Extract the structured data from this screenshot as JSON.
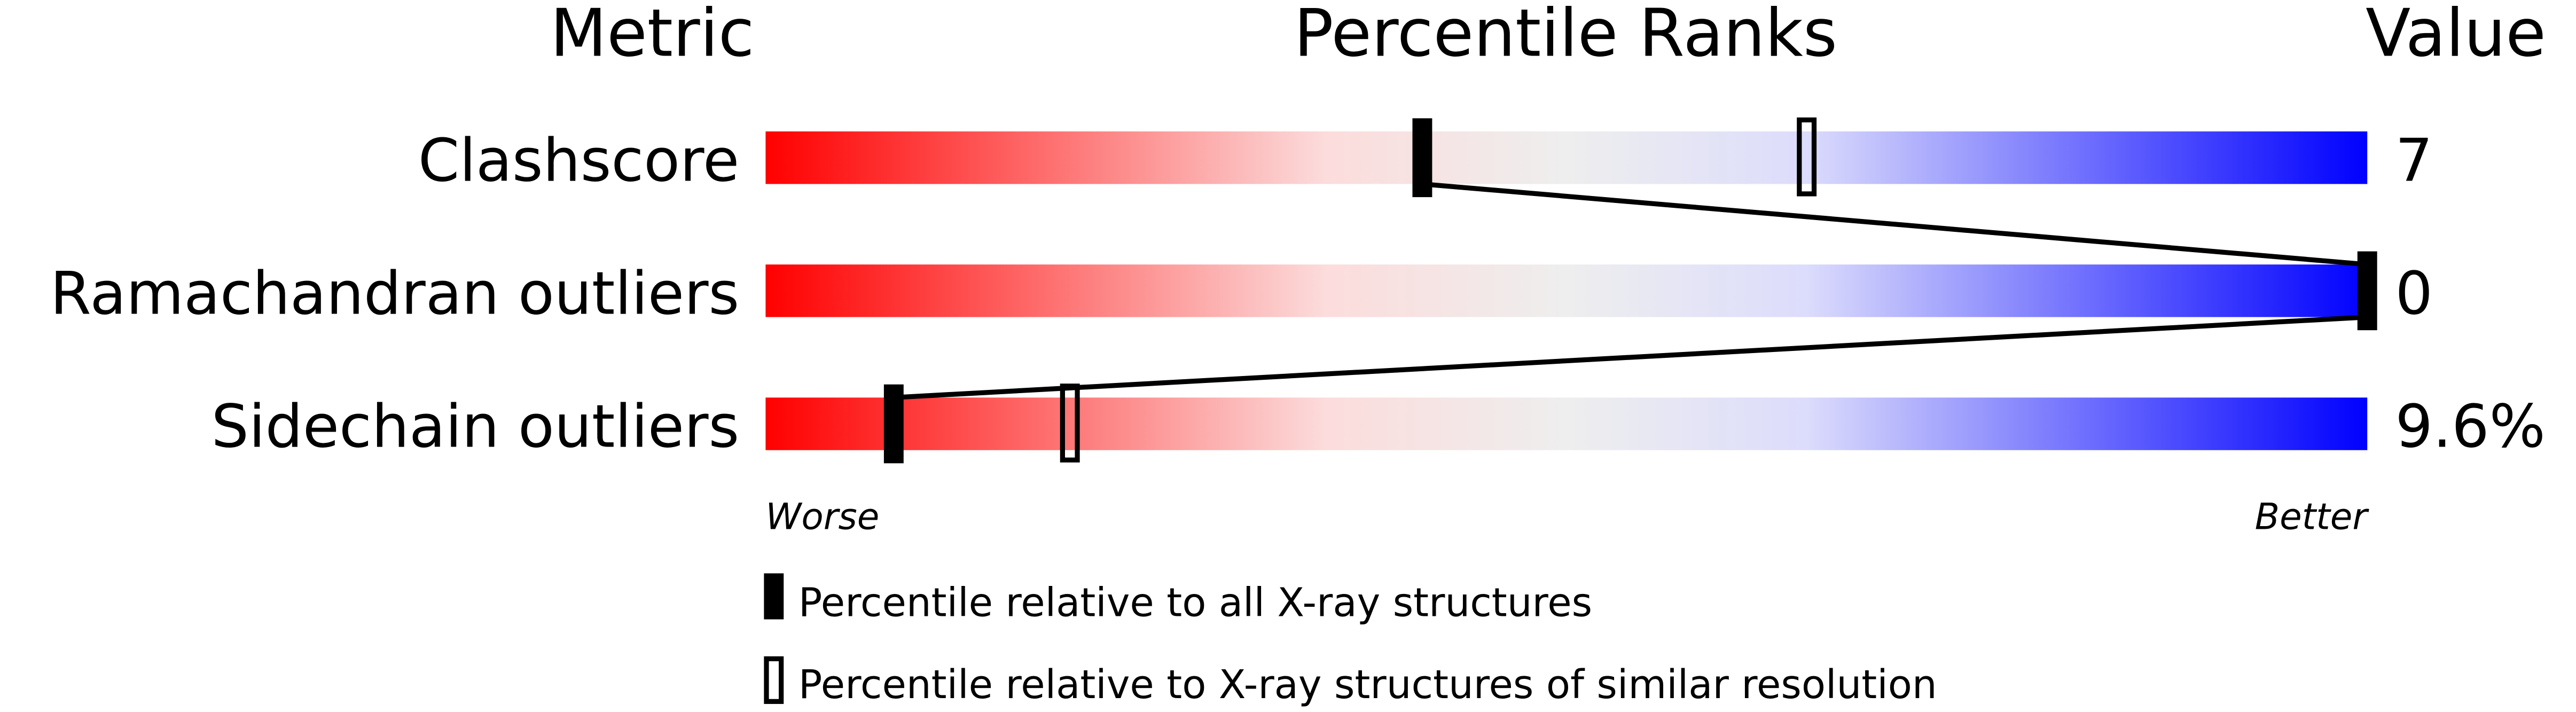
{
  "chart_data": {
    "type": "percentile-slider",
    "headers": {
      "metric": "Metric",
      "ranks": "Percentile Ranks",
      "value": "Value"
    },
    "xlim": [
      0,
      100
    ],
    "metrics": [
      {
        "name": "Clashscore",
        "value": "7",
        "percentile_all": 41,
        "percentile_similar": 65
      },
      {
        "name": "Ramachandran outliers",
        "value": "0",
        "percentile_all": 100,
        "percentile_similar": 100
      },
      {
        "name": "Sidechain outliers",
        "value": "9.6%",
        "percentile_all": 8,
        "percentile_similar": 19
      }
    ],
    "axis_labels": {
      "left": "Worse",
      "right": "Better"
    },
    "legend": [
      {
        "marker": "filled",
        "label": "Percentile relative to all X-ray structures"
      },
      {
        "marker": "open",
        "label": "Percentile relative to X-ray structures of similar resolution"
      }
    ],
    "gradient_colors": [
      "#ff0000",
      "#fcdcdc",
      "#eeeeee",
      "#dcdcfc",
      "#0000ff"
    ]
  }
}
